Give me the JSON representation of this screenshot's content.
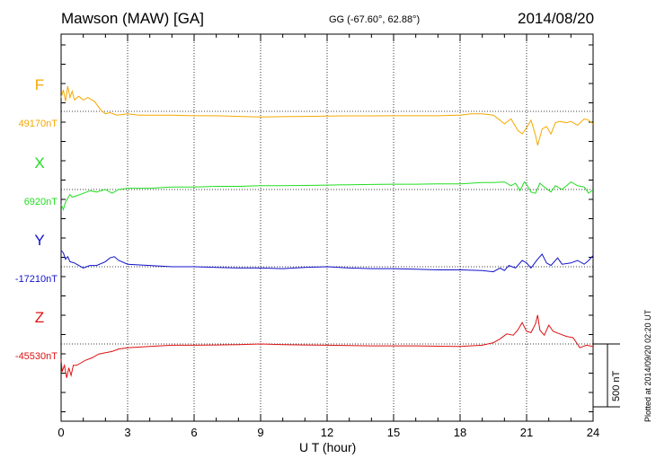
{
  "header": {
    "station": "Mawson (MAW)  [GA]",
    "coords": "GG (-67.60°,  62.88°)",
    "date": "2014/08/20"
  },
  "footer": {
    "plotted": "Plotted at 2014/09/20 02:20 UT"
  },
  "chart_data": {
    "type": "line",
    "title": "Mawson (MAW)  [GA]",
    "xlabel": "U T (hour)",
    "ylabel": "",
    "xlim": [
      0,
      24
    ],
    "x_ticks": [
      0,
      3,
      6,
      9,
      12,
      15,
      18,
      21,
      24
    ],
    "x_tick_labels": [
      "0",
      "3",
      "6",
      "9",
      "12",
      "15",
      "18",
      "21",
      "24"
    ],
    "grid": "vertical dotted at ticks; horizontal dotted at each component baseline",
    "scale_bar": {
      "label": "500 nT",
      "value_nT": 500
    },
    "series": [
      {
        "name": "F",
        "baseline_label": "49170nT",
        "baseline_nT": 49170,
        "color": "#f5a800",
        "x": [
          0,
          0.1,
          0.2,
          0.3,
          0.4,
          0.5,
          0.6,
          0.8,
          1,
          1.2,
          1.5,
          1.8,
          2.0,
          2.2,
          2.5,
          3,
          3.5,
          4,
          5,
          6,
          7,
          8,
          9,
          10,
          11,
          12,
          13,
          14,
          15,
          16,
          17,
          18,
          18.5,
          19,
          19.5,
          19.8,
          20,
          20.3,
          20.6,
          20.8,
          21,
          21.2,
          21.4,
          21.5,
          21.7,
          21.9,
          22.1,
          22.3,
          22.5,
          22.8,
          23,
          23.3,
          23.6,
          23.8,
          24
        ],
        "values": [
          49280,
          49340,
          49250,
          49370,
          49280,
          49330,
          49260,
          49290,
          49260,
          49280,
          49250,
          49180,
          49150,
          49160,
          49140,
          49150,
          49140,
          49140,
          49140,
          49135,
          49135,
          49130,
          49125,
          49128,
          49130,
          49133,
          49134,
          49134,
          49135,
          49135,
          49135,
          49140,
          49150,
          49150,
          49140,
          49100,
          49070,
          49110,
          49020,
          48990,
          49040,
          49100,
          48980,
          48900,
          49030,
          49050,
          48990,
          49080,
          49090,
          49080,
          49090,
          49060,
          49110,
          49100,
          49070
        ]
      },
      {
        "name": "X",
        "baseline_label": "6920nT",
        "baseline_nT": 6920,
        "color": "#22dd22",
        "x": [
          0,
          0.1,
          0.2,
          0.3,
          0.4,
          0.5,
          0.7,
          1,
          1.3,
          1.6,
          2.0,
          2.3,
          2.6,
          3,
          4,
          5,
          6,
          7,
          8,
          9,
          10,
          11,
          12,
          13,
          14,
          15,
          16,
          17,
          18,
          18.5,
          19,
          19.5,
          20,
          20.3,
          20.5,
          20.7,
          20.9,
          21,
          21.2,
          21.4,
          21.6,
          21.8,
          22.1,
          22.3,
          22.6,
          23,
          23.3,
          23.6,
          23.8,
          24
        ],
        "values": [
          6800,
          6760,
          6820,
          6850,
          6880,
          6860,
          6870,
          6890,
          6910,
          6900,
          6920,
          6890,
          6920,
          6930,
          6930,
          6940,
          6940,
          6945,
          6945,
          6950,
          6950,
          6952,
          6955,
          6958,
          6960,
          6962,
          6962,
          6965,
          6965,
          6970,
          6975,
          6975,
          6980,
          6950,
          6970,
          6910,
          6980,
          6960,
          6900,
          6890,
          6970,
          6940,
          6900,
          6950,
          6920,
          6980,
          6950,
          6940,
          6890,
          6920
        ]
      },
      {
        "name": "Y",
        "baseline_label": "-17210nT",
        "baseline_nT": -17210,
        "color": "#1111cc",
        "x": [
          0,
          0.1,
          0.2,
          0.3,
          0.4,
          0.6,
          0.8,
          1.0,
          1.3,
          1.6,
          2.0,
          2.2,
          2.4,
          2.6,
          3,
          4,
          5,
          6,
          7,
          8,
          9,
          10,
          11,
          12,
          13,
          14,
          15,
          16,
          17,
          18,
          19,
          19.5,
          19.8,
          20,
          20.2,
          20.5,
          20.8,
          21,
          21.2,
          21.5,
          21.7,
          21.9,
          22.1,
          22.4,
          22.6,
          23,
          23.3,
          23.6,
          23.8,
          24
        ],
        "values": [
          -17080,
          -17100,
          -17150,
          -17130,
          -17170,
          -17180,
          -17200,
          -17220,
          -17200,
          -17200,
          -17170,
          -17140,
          -17130,
          -17160,
          -17190,
          -17200,
          -17210,
          -17210,
          -17215,
          -17220,
          -17220,
          -17225,
          -17215,
          -17210,
          -17220,
          -17225,
          -17225,
          -17230,
          -17235,
          -17235,
          -17240,
          -17250,
          -17220,
          -17240,
          -17200,
          -17220,
          -17160,
          -17180,
          -17220,
          -17150,
          -17110,
          -17180,
          -17200,
          -17140,
          -17190,
          -17180,
          -17160,
          -17190,
          -17160,
          -17120
        ]
      },
      {
        "name": "Z",
        "baseline_label": "-45530nT",
        "baseline_nT": -45530,
        "color": "#dd1111",
        "x": [
          0,
          0.05,
          0.15,
          0.25,
          0.35,
          0.45,
          0.55,
          0.7,
          0.9,
          1.1,
          1.4,
          1.7,
          2.0,
          2.3,
          2.6,
          3,
          3.5,
          4,
          5,
          6,
          7,
          8,
          9,
          10,
          11,
          12,
          13,
          14,
          15,
          16,
          17,
          18,
          19,
          19.5,
          19.8,
          20.1,
          20.4,
          20.6,
          20.8,
          21,
          21.2,
          21.4,
          21.5,
          21.6,
          21.8,
          22,
          22.2,
          22.5,
          22.8,
          23.1,
          23.4,
          23.7,
          24
        ],
        "values": [
          -45650,
          -45750,
          -45700,
          -45800,
          -45720,
          -45780,
          -45700,
          -45700,
          -45680,
          -45660,
          -45640,
          -45610,
          -45600,
          -45590,
          -45570,
          -45560,
          -45555,
          -45550,
          -45540,
          -45540,
          -45538,
          -45535,
          -45530,
          -45535,
          -45538,
          -45540,
          -45542,
          -45545,
          -45545,
          -45545,
          -45548,
          -45550,
          -45540,
          -45520,
          -45490,
          -45450,
          -45460,
          -45420,
          -45360,
          -45430,
          -45440,
          -45370,
          -45300,
          -45420,
          -45460,
          -45380,
          -45430,
          -45450,
          -45470,
          -45480,
          -45560,
          -45540,
          -45550
        ]
      }
    ]
  }
}
